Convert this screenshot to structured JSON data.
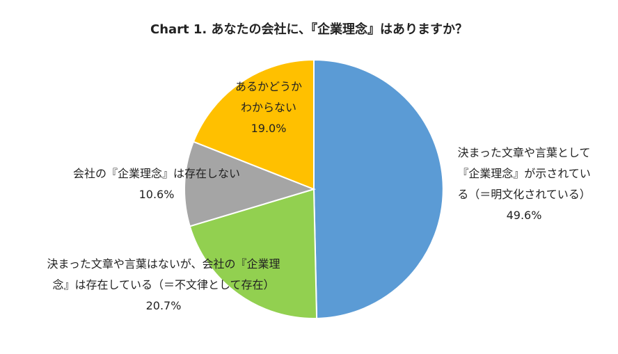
{
  "chart_data": {
    "type": "pie",
    "title": "Chart 1. あなたの会社に、『企業理念』はありますか？",
    "slices": [
      {
        "label_lines": [
          "決まった文章や言葉として",
          "『企業理念』が示されてい",
          "る（＝明文化されている）"
        ],
        "value": 49.6,
        "value_label": "49.6%",
        "color": "#5b9bd5"
      },
      {
        "label_lines": [
          "決まった文章や言葉はないが、会社の『企業理",
          "念』は存在している（＝不文律として存在）"
        ],
        "value": 20.7,
        "value_label": "20.7%",
        "color": "#92d050"
      },
      {
        "label_lines": [
          "会社の『企業理念』は存在しない"
        ],
        "value": 10.6,
        "value_label": "10.6%",
        "color": "#a5a5a5"
      },
      {
        "label_lines": [
          "あるかどうか",
          "わからない"
        ],
        "value": 19.0,
        "value_label": "19.0%",
        "color": "#ffc000"
      }
    ],
    "start": "12 o'clock",
    "direction": "clockwise",
    "legend": "none"
  }
}
